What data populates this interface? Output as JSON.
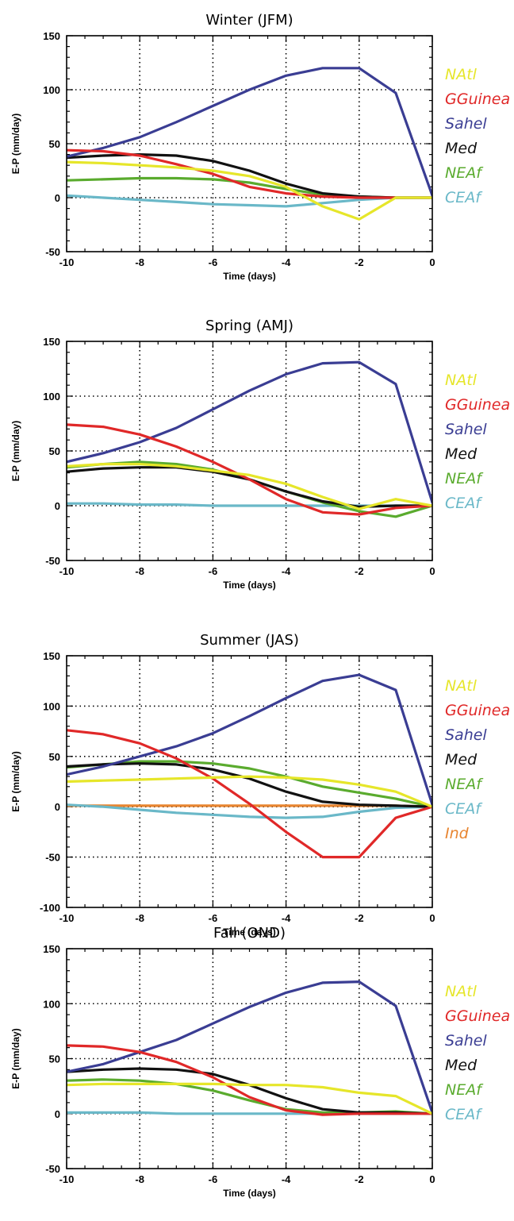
{
  "chart_data": [
    {
      "type": "line",
      "title": "Winter (JFM)",
      "xlabel": "Time (days)",
      "ylabel": "E-P (mm/day)",
      "xlim": [
        -10,
        0
      ],
      "ylim": [
        -50,
        150
      ],
      "xticks": [
        -10,
        -8,
        -6,
        -4,
        -2,
        0
      ],
      "yticks": [
        -50,
        0,
        50,
        100,
        150
      ],
      "grid": true,
      "legend_position": "right",
      "x": [
        -10,
        -9,
        -8,
        -7,
        -6,
        -5,
        -4,
        -3,
        -2,
        -1,
        0
      ],
      "series": [
        {
          "name": "NAtl",
          "color": "#e6e62a",
          "values": [
            33,
            32,
            30,
            28,
            25,
            20,
            10,
            -8,
            -20,
            0,
            0
          ]
        },
        {
          "name": "GGuinea",
          "color": "#e02828",
          "values": [
            44,
            43,
            39,
            31,
            22,
            10,
            4,
            1,
            0,
            0,
            0
          ]
        },
        {
          "name": "Sahel",
          "color": "#3a3d93",
          "values": [
            38,
            46,
            56,
            70,
            85,
            100,
            113,
            120,
            120,
            97,
            2
          ]
        },
        {
          "name": "Med",
          "color": "#111111",
          "values": [
            37,
            39,
            40,
            39,
            34,
            25,
            13,
            4,
            1,
            0,
            0
          ]
        },
        {
          "name": "NEAf",
          "color": "#5aab2e",
          "values": [
            16,
            17,
            18,
            18,
            17,
            14,
            8,
            3,
            1,
            0,
            0
          ]
        },
        {
          "name": "CEAf",
          "color": "#6ab8c8",
          "values": [
            2,
            0,
            -2,
            -4,
            -6,
            -7,
            -8,
            -5,
            -2,
            0,
            0
          ]
        }
      ]
    },
    {
      "type": "line",
      "title": "Spring (AMJ)",
      "xlabel": "Time (days)",
      "ylabel": "E-P (mm/day)",
      "xlim": [
        -10,
        0
      ],
      "ylim": [
        -50,
        150
      ],
      "xticks": [
        -10,
        -8,
        -6,
        -4,
        -2,
        0
      ],
      "yticks": [
        -50,
        0,
        50,
        100,
        150
      ],
      "grid": true,
      "legend_position": "right",
      "x": [
        -10,
        -9,
        -8,
        -7,
        -6,
        -5,
        -4,
        -3,
        -2,
        -1,
        0
      ],
      "series": [
        {
          "name": "NAtl",
          "color": "#e6e62a",
          "values": [
            36,
            38,
            38,
            36,
            32,
            28,
            20,
            8,
            -3,
            6,
            0
          ]
        },
        {
          "name": "GGuinea",
          "color": "#e02828",
          "values": [
            74,
            72,
            65,
            54,
            40,
            24,
            6,
            -6,
            -8,
            -2,
            0
          ]
        },
        {
          "name": "Sahel",
          "color": "#3a3d93",
          "values": [
            40,
            48,
            58,
            71,
            88,
            105,
            120,
            130,
            131,
            111,
            3
          ]
        },
        {
          "name": "Med",
          "color": "#111111",
          "values": [
            31,
            34,
            35,
            35,
            31,
            24,
            13,
            4,
            -1,
            0,
            0
          ]
        },
        {
          "name": "NEAf",
          "color": "#5aab2e",
          "values": [
            35,
            38,
            40,
            38,
            33,
            24,
            13,
            3,
            -5,
            -10,
            0
          ]
        },
        {
          "name": "CEAf",
          "color": "#6ab8c8",
          "values": [
            2,
            2,
            1,
            1,
            0,
            0,
            0,
            0,
            0,
            0,
            0
          ]
        }
      ]
    },
    {
      "type": "line",
      "title": "Summer (JAS)",
      "xlabel": "Time (days)",
      "ylabel": "E-P (mm/day)",
      "xlim": [
        -10,
        0
      ],
      "ylim": [
        -100,
        150
      ],
      "xticks": [
        -10,
        -8,
        -6,
        -4,
        -2,
        0
      ],
      "yticks": [
        -100,
        -50,
        0,
        50,
        100,
        150
      ],
      "grid": true,
      "legend_position": "right",
      "x": [
        -10,
        -9,
        -8,
        -7,
        -6,
        -5,
        -4,
        -3,
        -2,
        -1,
        0
      ],
      "series": [
        {
          "name": "NAtl",
          "color": "#e6e62a",
          "values": [
            25,
            26,
            27,
            28,
            29,
            30,
            29,
            27,
            22,
            15,
            0
          ]
        },
        {
          "name": "GGuinea",
          "color": "#e02828",
          "values": [
            76,
            72,
            63,
            48,
            28,
            3,
            -25,
            -50,
            -50,
            -11,
            0
          ]
        },
        {
          "name": "Sahel",
          "color": "#3a3d93",
          "values": [
            32,
            40,
            50,
            60,
            73,
            90,
            108,
            125,
            131,
            116,
            2
          ]
        },
        {
          "name": "Med",
          "color": "#111111",
          "values": [
            40,
            42,
            43,
            42,
            37,
            28,
            15,
            5,
            2,
            1,
            0
          ]
        },
        {
          "name": "NEAf",
          "color": "#5aab2e",
          "values": [
            39,
            42,
            45,
            45,
            43,
            38,
            30,
            20,
            14,
            8,
            0
          ]
        },
        {
          "name": "CEAf",
          "color": "#6ab8c8",
          "values": [
            2,
            0,
            -3,
            -6,
            -8,
            -10,
            -11,
            -10,
            -5,
            -1,
            0
          ]
        },
        {
          "name": "Ind",
          "color": "#e88530",
          "values": [
            1,
            1,
            1,
            1,
            1,
            1,
            1,
            1,
            1,
            1,
            0
          ]
        }
      ]
    },
    {
      "type": "line",
      "title": "Fall (OND)",
      "xlabel": "Time (days)",
      "ylabel": "E-P (mm/day)",
      "xlim": [
        -10,
        0
      ],
      "ylim": [
        -50,
        150
      ],
      "xticks": [
        -10,
        -8,
        -6,
        -4,
        -2,
        0
      ],
      "yticks": [
        -50,
        0,
        50,
        100,
        150
      ],
      "grid": true,
      "legend_position": "right",
      "x": [
        -10,
        -9,
        -8,
        -7,
        -6,
        -5,
        -4,
        -3,
        -2,
        -1,
        0
      ],
      "series": [
        {
          "name": "NAtl",
          "color": "#e6e62a",
          "values": [
            26,
            27,
            27,
            27,
            27,
            26,
            26,
            24,
            19,
            16,
            0
          ]
        },
        {
          "name": "GGuinea",
          "color": "#e02828",
          "values": [
            62,
            61,
            56,
            47,
            33,
            15,
            3,
            -1,
            0,
            0,
            0
          ]
        },
        {
          "name": "Sahel",
          "color": "#3a3d93",
          "values": [
            38,
            45,
            56,
            67,
            82,
            97,
            110,
            119,
            120,
            98,
            1
          ]
        },
        {
          "name": "Med",
          "color": "#111111",
          "values": [
            38,
            40,
            41,
            40,
            36,
            26,
            14,
            4,
            1,
            1,
            0
          ]
        },
        {
          "name": "NEAf",
          "color": "#5aab2e",
          "values": [
            30,
            31,
            30,
            27,
            21,
            12,
            4,
            1,
            1,
            2,
            0
          ]
        },
        {
          "name": "CEAf",
          "color": "#6ab8c8",
          "values": [
            1,
            1,
            1,
            0,
            0,
            0,
            0,
            0,
            0,
            0,
            0
          ]
        }
      ]
    }
  ]
}
